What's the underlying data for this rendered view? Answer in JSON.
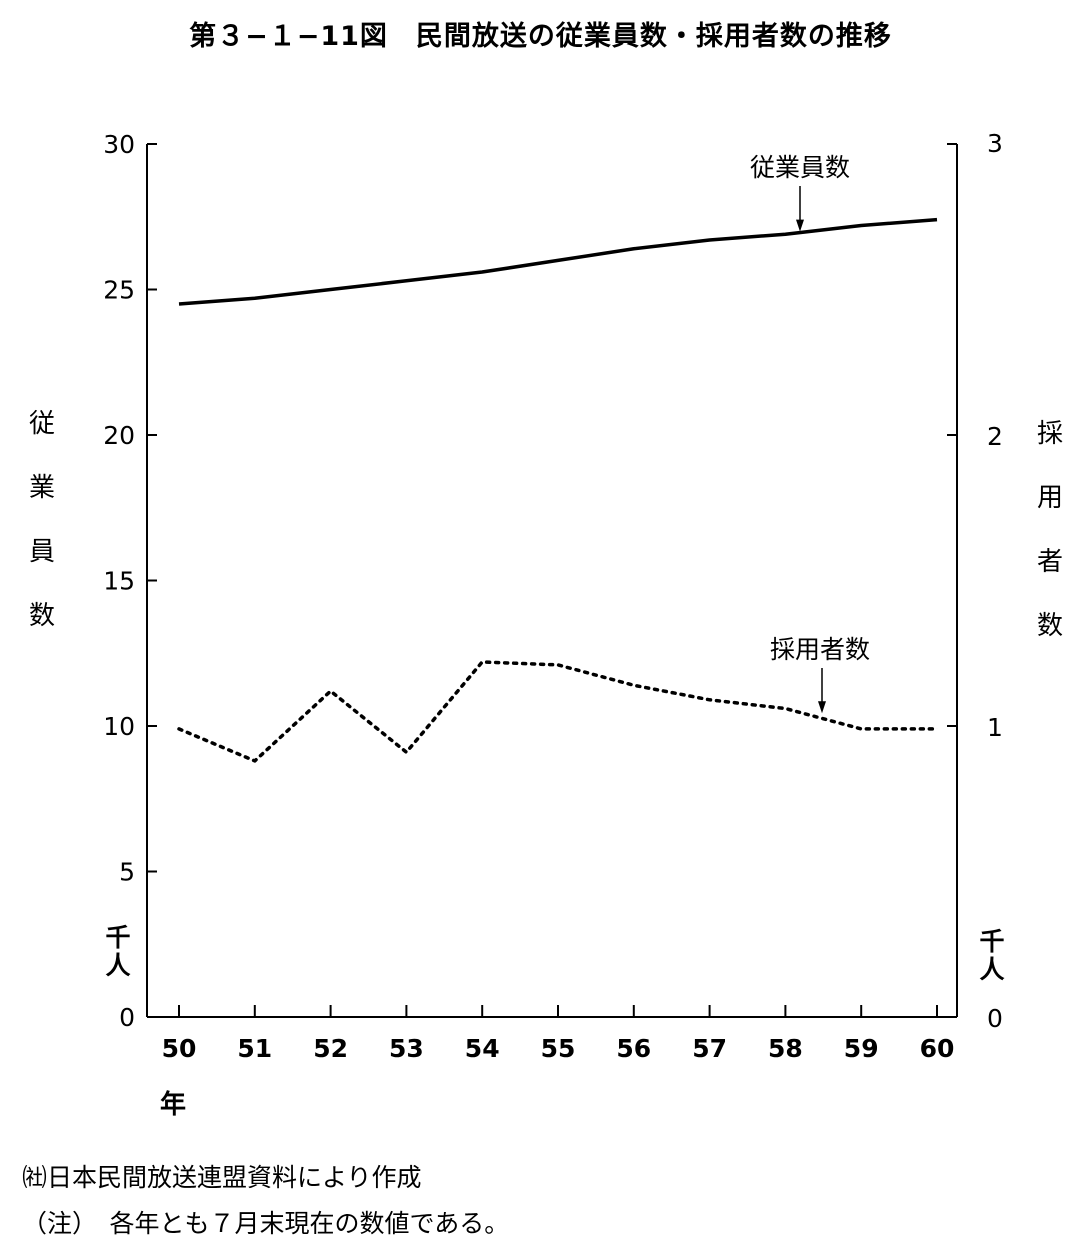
{
  "title": "第３−１−11図　民間放送の従業員数・採用者数の推移",
  "left_axis_label": "従業員数",
  "right_axis_label": "採用者数",
  "left_unit": "千人",
  "right_unit": "千人",
  "x_unit": "年",
  "notes": [
    "㈳日本民間放送連盟資料により作成",
    "（注）　各年とも７月末現在の数値である。"
  ],
  "chart_data": {
    "type": "line",
    "x": [
      "50",
      "51",
      "52",
      "53",
      "54",
      "55",
      "56",
      "57",
      "58",
      "59",
      "60"
    ],
    "y_left": {
      "ticks": [
        0,
        5,
        10,
        15,
        20,
        25,
        30
      ],
      "range": [
        0,
        30
      ]
    },
    "y_right": {
      "ticks": [
        0,
        1,
        2,
        3
      ],
      "range": [
        0,
        3
      ]
    },
    "series": [
      {
        "name": "従業員数",
        "axis": "left",
        "style": "solid",
        "values": [
          24.5,
          24.7,
          25.0,
          25.3,
          25.6,
          26.0,
          26.4,
          26.7,
          26.9,
          27.2,
          27.4
        ]
      },
      {
        "name": "採用者数",
        "axis": "right",
        "style": "dotted",
        "values": [
          0.99,
          0.88,
          1.12,
          0.91,
          1.22,
          1.21,
          1.14,
          1.09,
          1.06,
          0.99,
          0.99
        ]
      }
    ]
  }
}
